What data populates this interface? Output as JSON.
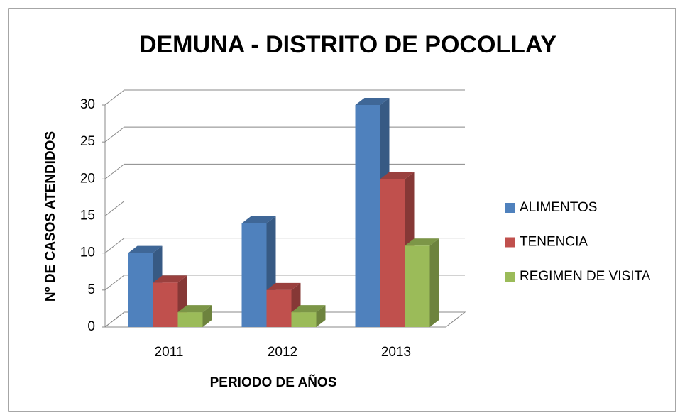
{
  "chart_data": {
    "type": "bar",
    "title": "DEMUNA - DISTRITO DE POCOLLAY",
    "y_label": "Nº DE CASOS ATENDIDOS",
    "x_label": "PERIODO DE AÑOS",
    "categories": [
      "2011",
      "2012",
      "2013"
    ],
    "series": [
      {
        "name": "ALIMENTOS",
        "color": "#4f81bd",
        "values": [
          10,
          14,
          30
        ]
      },
      {
        "name": "TENENCIA",
        "color": "#c0504d",
        "values": [
          6,
          5,
          20
        ]
      },
      {
        "name": "REGIMEN DE VISITA",
        "color": "#9bbb59",
        "values": [
          2,
          2,
          11
        ]
      }
    ],
    "ylim": [
      0,
      30
    ],
    "yticks": [
      0,
      5,
      10,
      15,
      20,
      25,
      30
    ],
    "grid": true,
    "legend": "right"
  }
}
